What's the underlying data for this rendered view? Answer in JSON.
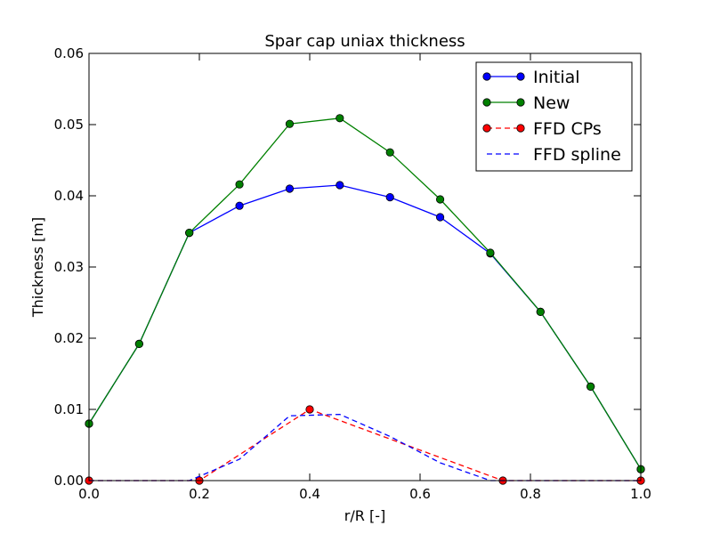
{
  "chart_data": {
    "type": "line",
    "title": "Spar cap uniax thickness",
    "xlabel": "r/R [-]",
    "ylabel": "Thickness [m]",
    "xlim": [
      0.0,
      1.0
    ],
    "ylim": [
      0.0,
      0.06
    ],
    "xticks": [
      "0.0",
      "0.2",
      "0.4",
      "0.6",
      "0.8",
      "1.0"
    ],
    "yticks": [
      "0.00",
      "0.01",
      "0.02",
      "0.03",
      "0.04",
      "0.05",
      "0.06"
    ],
    "grid": false,
    "legend_position": "top-right",
    "series": [
      {
        "name": "Initial",
        "color": "#0000ff",
        "linestyle": "solid",
        "marker": "circle",
        "x": [
          0.0,
          0.0909,
          0.1818,
          0.2727,
          0.3636,
          0.4545,
          0.5455,
          0.6364,
          0.7273,
          0.8182,
          0.9091,
          1.0
        ],
        "y": [
          0.008,
          0.0192,
          0.0348,
          0.0386,
          0.041,
          0.0415,
          0.0398,
          0.037,
          0.0319,
          0.0237,
          0.0132,
          0.0016
        ]
      },
      {
        "name": "New",
        "color": "#008000",
        "linestyle": "solid",
        "marker": "circle",
        "x": [
          0.0,
          0.0909,
          0.1818,
          0.2727,
          0.3636,
          0.4545,
          0.5455,
          0.6364,
          0.7273,
          0.8182,
          0.9091,
          1.0
        ],
        "y": [
          0.008,
          0.0192,
          0.0348,
          0.0416,
          0.0501,
          0.0509,
          0.0461,
          0.0395,
          0.032,
          0.0237,
          0.0132,
          0.0016
        ]
      },
      {
        "name": "FFD CPs",
        "color": "#ff0000",
        "linestyle": "dashed",
        "marker": "circle",
        "x": [
          0.0,
          0.2,
          0.4,
          0.75,
          1.0
        ],
        "y": [
          0.0,
          0.0,
          0.01,
          0.0,
          0.0
        ]
      },
      {
        "name": "FFD spline",
        "color": "#0000ff",
        "linestyle": "dashed",
        "marker": "none",
        "x": [
          0.0,
          0.0909,
          0.1818,
          0.2727,
          0.3636,
          0.4545,
          0.5455,
          0.6364,
          0.7273,
          0.8182,
          0.9091,
          1.0
        ],
        "y": [
          0.0,
          0.0,
          0.0,
          0.003,
          0.0091,
          0.0093,
          0.0062,
          0.0025,
          0.0,
          0.0,
          0.0,
          0.0
        ]
      }
    ]
  }
}
